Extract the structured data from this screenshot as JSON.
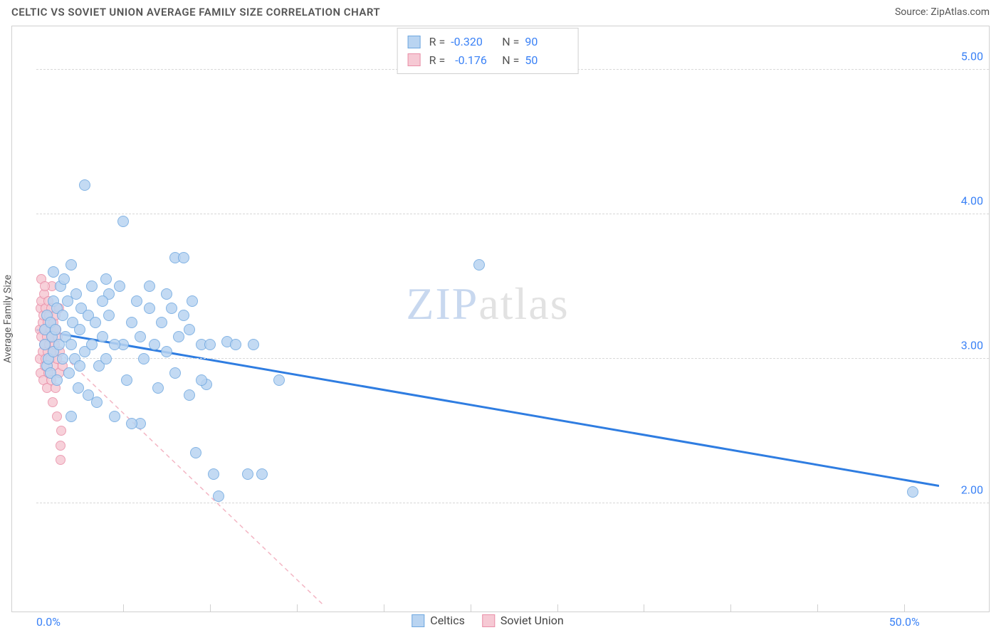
{
  "header": {
    "title": "CELTIC VS SOVIET UNION AVERAGE FAMILY SIZE CORRELATION CHART",
    "source_prefix": "Source: ",
    "source_name": "ZipAtlas.com"
  },
  "axes": {
    "y_label": "Average Family Size",
    "y_min": 1.3,
    "y_max": 5.3,
    "y_ticks": [
      2.0,
      3.0,
      4.0,
      5.0
    ],
    "y_tick_labels": [
      "2.00",
      "3.00",
      "4.00",
      "5.00"
    ],
    "x_min": 0.0,
    "x_max": 52.0,
    "x_ticks_minor": [
      5,
      10,
      15,
      20,
      25,
      30,
      35,
      40,
      45,
      50
    ],
    "x_tick_labels": [
      {
        "x": 0.0,
        "label": "0.0%"
      },
      {
        "x": 50.0,
        "label": "50.0%"
      }
    ]
  },
  "series": {
    "celtics": {
      "label": "Celtics",
      "color_fill": "#b9d4f1",
      "color_stroke": "#6fa8e0",
      "marker_radius": 8,
      "trend": {
        "x1": 0.0,
        "y1": 3.2,
        "x2": 52.0,
        "y2": 2.12,
        "color": "#2f7de1",
        "width": 3,
        "dash": "none"
      },
      "R_label": "R =",
      "R_value": "-0.320",
      "N_label": "N =",
      "N_value": "90",
      "points": [
        [
          0.5,
          3.1
        ],
        [
          0.5,
          3.2
        ],
        [
          0.6,
          2.95
        ],
        [
          0.6,
          3.3
        ],
        [
          0.7,
          3.0
        ],
        [
          0.8,
          3.25
        ],
        [
          0.8,
          2.9
        ],
        [
          0.9,
          3.15
        ],
        [
          1.0,
          3.4
        ],
        [
          1.0,
          3.05
        ],
        [
          1.1,
          3.2
        ],
        [
          1.2,
          3.35
        ],
        [
          1.2,
          2.85
        ],
        [
          1.3,
          3.1
        ],
        [
          1.4,
          3.5
        ],
        [
          1.5,
          3.0
        ],
        [
          1.5,
          3.3
        ],
        [
          1.6,
          3.55
        ],
        [
          1.7,
          3.15
        ],
        [
          1.8,
          3.4
        ],
        [
          1.9,
          2.9
        ],
        [
          2.0,
          3.65
        ],
        [
          2.0,
          3.1
        ],
        [
          2.0,
          2.6
        ],
        [
          2.1,
          3.25
        ],
        [
          2.2,
          3.0
        ],
        [
          2.3,
          3.45
        ],
        [
          2.4,
          2.8
        ],
        [
          2.5,
          3.2
        ],
        [
          2.6,
          3.35
        ],
        [
          2.8,
          4.2
        ],
        [
          2.8,
          3.05
        ],
        [
          3.0,
          3.3
        ],
        [
          3.0,
          2.75
        ],
        [
          3.2,
          3.5
        ],
        [
          3.2,
          3.1
        ],
        [
          3.4,
          3.25
        ],
        [
          3.6,
          2.95
        ],
        [
          3.8,
          3.15
        ],
        [
          4.0,
          3.55
        ],
        [
          4.0,
          3.0
        ],
        [
          4.2,
          3.3
        ],
        [
          4.5,
          2.6
        ],
        [
          4.8,
          3.5
        ],
        [
          5.0,
          3.95
        ],
        [
          5.0,
          3.1
        ],
        [
          5.2,
          2.85
        ],
        [
          5.5,
          3.25
        ],
        [
          5.8,
          3.4
        ],
        [
          6.0,
          2.55
        ],
        [
          6.0,
          3.15
        ],
        [
          6.2,
          3.0
        ],
        [
          6.5,
          3.35
        ],
        [
          6.8,
          3.1
        ],
        [
          7.0,
          2.8
        ],
        [
          7.2,
          3.25
        ],
        [
          7.5,
          3.45
        ],
        [
          7.5,
          3.05
        ],
        [
          8.0,
          3.7
        ],
        [
          8.0,
          2.9
        ],
        [
          8.2,
          3.15
        ],
        [
          8.5,
          3.3
        ],
        [
          8.5,
          3.7
        ],
        [
          8.8,
          2.75
        ],
        [
          9.0,
          3.4
        ],
        [
          9.2,
          2.35
        ],
        [
          9.5,
          3.1
        ],
        [
          9.8,
          2.82
        ],
        [
          10.0,
          3.1
        ],
        [
          10.2,
          2.2
        ],
        [
          10.5,
          2.05
        ],
        [
          11.0,
          3.12
        ],
        [
          11.5,
          3.1
        ],
        [
          12.2,
          2.2
        ],
        [
          12.5,
          3.1
        ],
        [
          13.0,
          2.2
        ],
        [
          14.0,
          2.85
        ],
        [
          25.5,
          3.65
        ],
        [
          50.5,
          2.08
        ],
        [
          1.0,
          3.6
        ],
        [
          2.5,
          2.95
        ],
        [
          3.5,
          2.7
        ],
        [
          4.2,
          3.45
        ],
        [
          5.5,
          2.55
        ],
        [
          6.5,
          3.5
        ],
        [
          7.8,
          3.35
        ],
        [
          8.8,
          3.2
        ],
        [
          9.5,
          2.85
        ],
        [
          3.8,
          3.4
        ],
        [
          4.5,
          3.1
        ]
      ]
    },
    "soviet": {
      "label": "Soviet Union",
      "color_fill": "#f6c9d4",
      "color_stroke": "#e98fa8",
      "marker_radius": 7,
      "trend": {
        "x1": 0.0,
        "y1": 3.2,
        "x2": 16.5,
        "y2": 1.3,
        "color": "#f3b6c4",
        "width": 1.5,
        "dash": "6,5"
      },
      "R_label": "R =",
      "R_value": "-0.176",
      "N_label": "N =",
      "N_value": "50",
      "points": [
        [
          0.2,
          3.2
        ],
        [
          0.2,
          3.0
        ],
        [
          0.25,
          3.35
        ],
        [
          0.25,
          2.9
        ],
        [
          0.3,
          3.15
        ],
        [
          0.3,
          3.4
        ],
        [
          0.35,
          3.05
        ],
        [
          0.35,
          3.25
        ],
        [
          0.4,
          2.85
        ],
        [
          0.4,
          3.3
        ],
        [
          0.45,
          3.1
        ],
        [
          0.45,
          3.45
        ],
        [
          0.5,
          2.95
        ],
        [
          0.5,
          3.2
        ],
        [
          0.55,
          3.35
        ],
        [
          0.55,
          3.0
        ],
        [
          0.6,
          3.15
        ],
        [
          0.6,
          2.8
        ],
        [
          0.65,
          3.25
        ],
        [
          0.65,
          3.05
        ],
        [
          0.7,
          3.4
        ],
        [
          0.7,
          2.9
        ],
        [
          0.75,
          3.1
        ],
        [
          0.75,
          3.3
        ],
        [
          0.8,
          3.0
        ],
        [
          0.8,
          3.2
        ],
        [
          0.85,
          2.85
        ],
        [
          0.85,
          3.35
        ],
        [
          0.9,
          3.15
        ],
        [
          0.9,
          3.5
        ],
        [
          0.95,
          3.05
        ],
        [
          0.95,
          2.7
        ],
        [
          1.0,
          3.25
        ],
        [
          1.0,
          2.95
        ],
        [
          1.05,
          3.1
        ],
        [
          1.1,
          3.3
        ],
        [
          1.1,
          2.8
        ],
        [
          1.15,
          3.2
        ],
        [
          1.2,
          3.0
        ],
        [
          1.2,
          2.6
        ],
        [
          1.25,
          3.15
        ],
        [
          1.3,
          2.9
        ],
        [
          1.3,
          3.35
        ],
        [
          1.35,
          3.05
        ],
        [
          1.4,
          2.4
        ],
        [
          1.4,
          2.3
        ],
        [
          1.45,
          2.5
        ],
        [
          1.5,
          2.95
        ],
        [
          0.3,
          3.55
        ],
        [
          0.5,
          3.5
        ]
      ]
    }
  },
  "watermark": {
    "z": "ZIP",
    "rest": "atlas"
  },
  "colors": {
    "background": "#ffffff",
    "border": "#d0d0d0",
    "grid": "#d8d8d8",
    "text": "#555555",
    "accent": "#3b82f6"
  }
}
